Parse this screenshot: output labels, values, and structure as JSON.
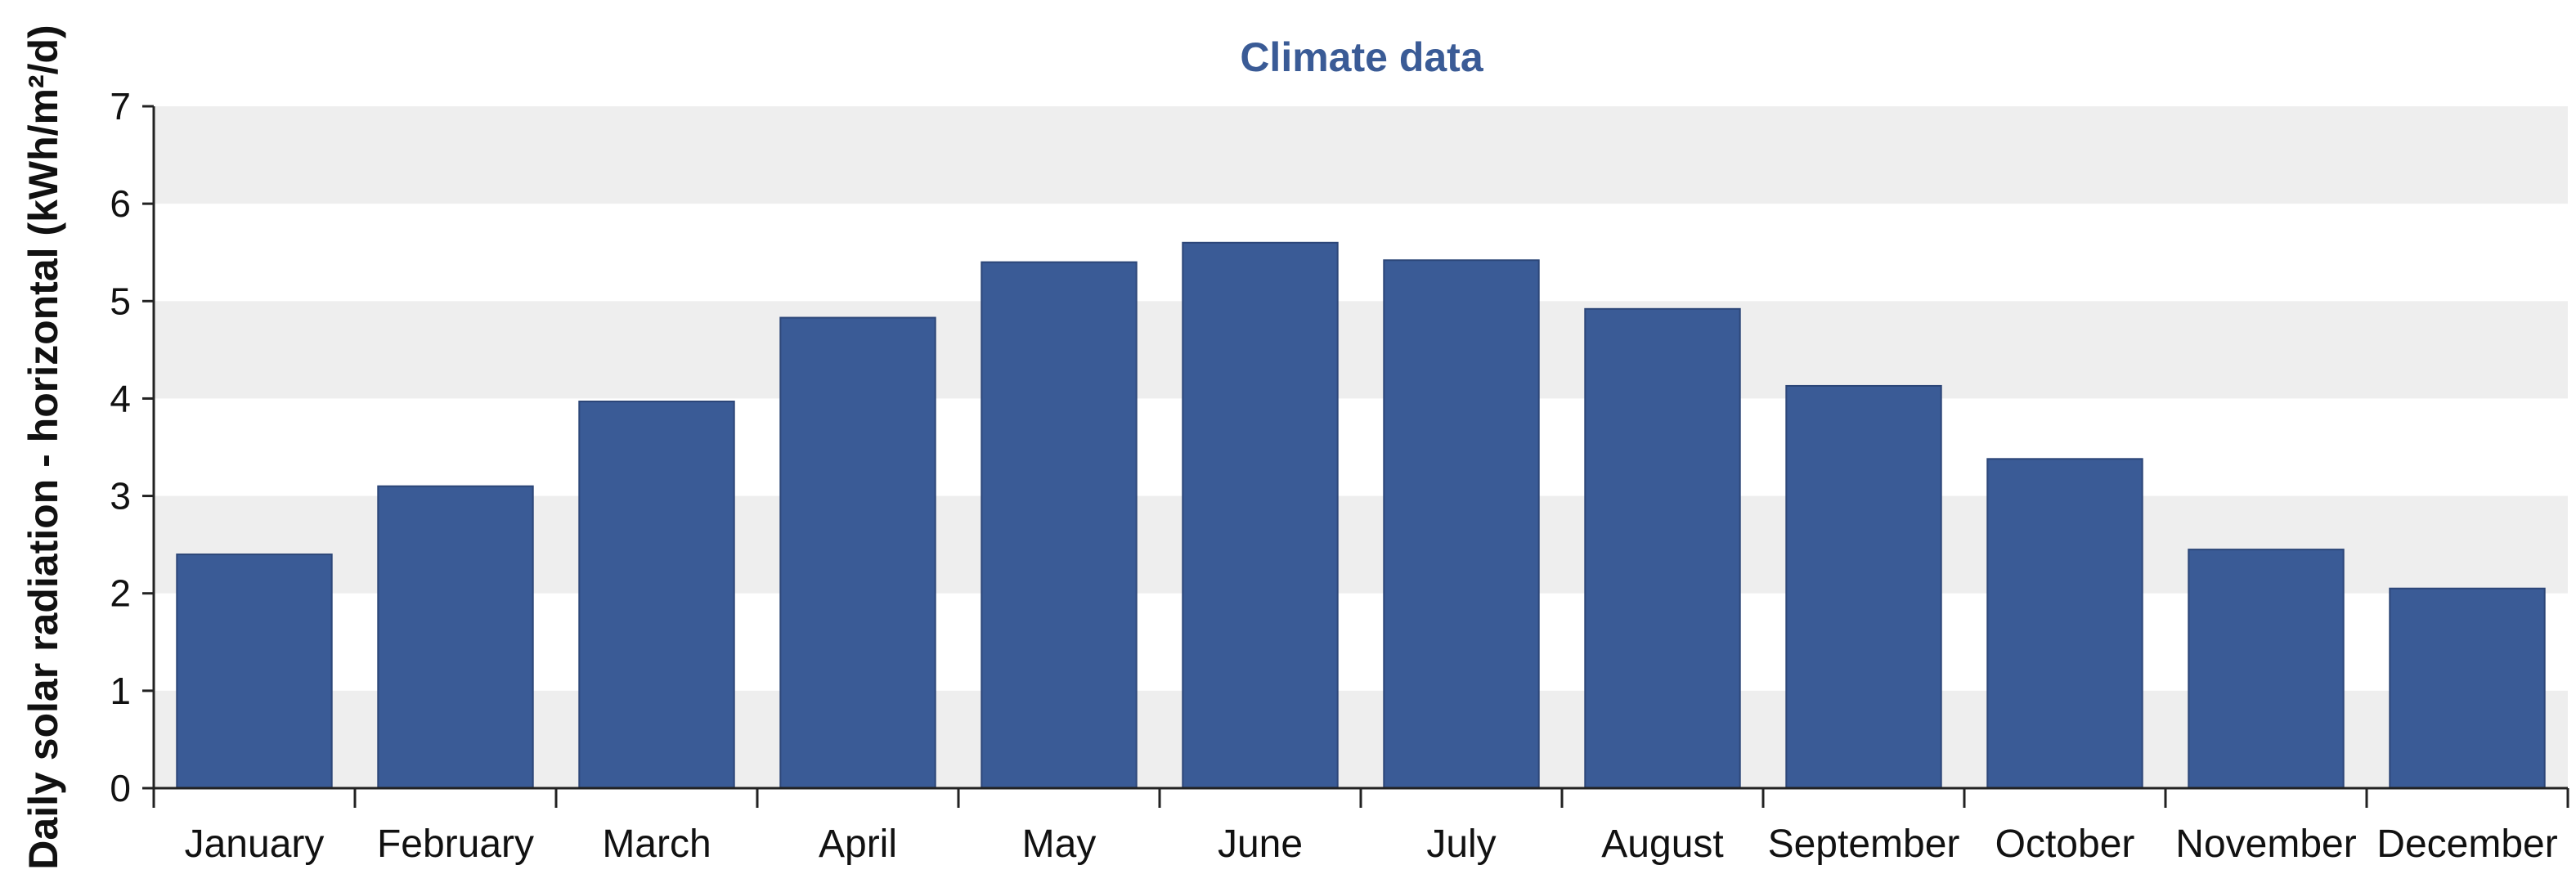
{
  "chart_data": {
    "type": "bar",
    "title": "Climate data",
    "ylabel": "Daily solar radiation - horizontal (kWh/m²/d)",
    "xlabel": "",
    "categories": [
      "January",
      "February",
      "March",
      "April",
      "May",
      "June",
      "July",
      "August",
      "September",
      "October",
      "November",
      "December"
    ],
    "values": [
      2.4,
      3.1,
      3.97,
      4.83,
      5.4,
      5.6,
      5.42,
      4.92,
      4.13,
      3.38,
      2.45,
      2.05
    ],
    "ylim": [
      0,
      7
    ],
    "yticks": [
      "0",
      "1",
      "2",
      "3",
      "4",
      "5",
      "6",
      "7"
    ],
    "grid": "alternating horizontal bands",
    "legend": "none",
    "colors": {
      "bar": "#3a5b96",
      "title": "#3a5b96",
      "band": "#eeeeee",
      "axis": "#222222"
    }
  }
}
